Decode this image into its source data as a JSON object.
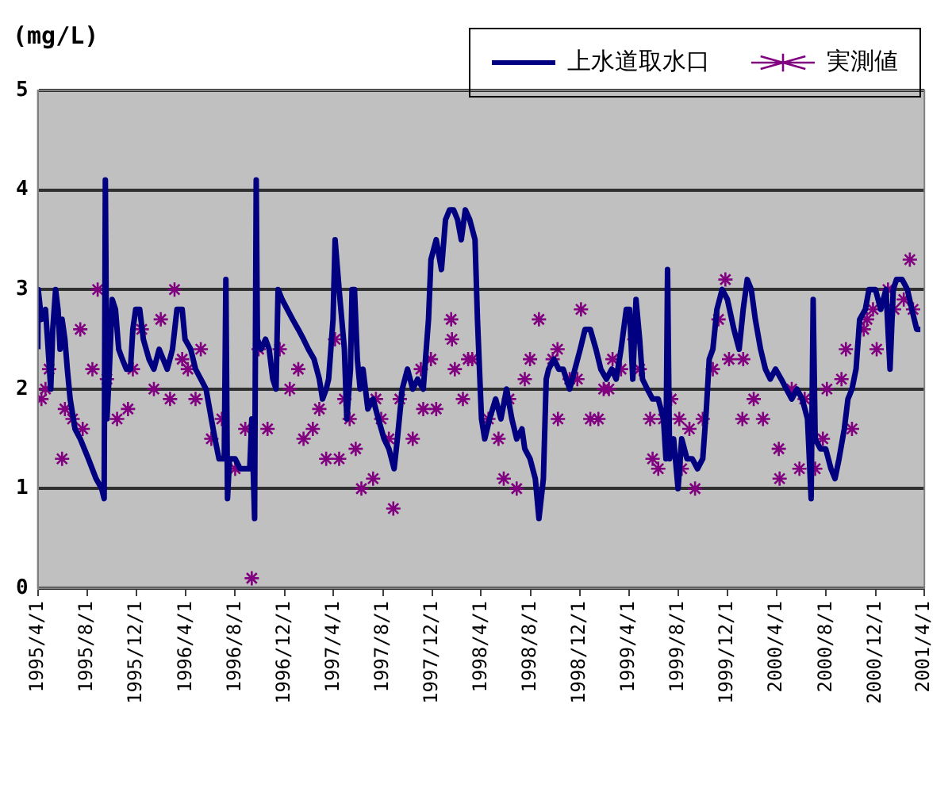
{
  "chart_data": {
    "type": "line",
    "ylabel": "(mg/L)",
    "ylim": [
      0,
      5
    ],
    "yticks": [
      0,
      1,
      2,
      3,
      4,
      5
    ],
    "grid": "y",
    "legend": "top right",
    "xlim": [
      "1995-04-01",
      "2001-04-01"
    ],
    "xticks": [
      {
        "value": "1995-04-01",
        "label": "1995/4/1"
      },
      {
        "value": "1995-08-01",
        "label": "1995/8/1"
      },
      {
        "value": "1995-12-01",
        "label": "1995/12/1"
      },
      {
        "value": "1996-04-01",
        "label": "1996/4/1"
      },
      {
        "value": "1996-08-01",
        "label": "1996/8/1"
      },
      {
        "value": "1996-12-01",
        "label": "1996/12/1"
      },
      {
        "value": "1997-04-01",
        "label": "1997/4/1"
      },
      {
        "value": "1997-08-01",
        "label": "1997/8/1"
      },
      {
        "value": "1997-12-01",
        "label": "1997/12/1"
      },
      {
        "value": "1998-04-01",
        "label": "1998/4/1"
      },
      {
        "value": "1998-08-01",
        "label": "1998/8/1"
      },
      {
        "value": "1998-12-01",
        "label": "1998/12/1"
      },
      {
        "value": "1999-04-01",
        "label": "1999/4/1"
      },
      {
        "value": "1999-08-01",
        "label": "1999/8/1"
      },
      {
        "value": "1999-12-01",
        "label": "1999/12/1"
      },
      {
        "value": "2000-04-01",
        "label": "2000/4/1"
      },
      {
        "value": "2000-08-01",
        "label": "2000/8/1"
      },
      {
        "value": "2000-12-01",
        "label": "2000/12/1"
      },
      {
        "value": "2001-04-01",
        "label": "2001/4/1"
      }
    ],
    "series": [
      {
        "name": "上水道取水口",
        "type": "line",
        "color": "#000080",
        "marker": "none",
        "line_style": "solid",
        "x": [
          "1995-04-01",
          "1995-04-02",
          "1995-04-10",
          "1995-04-20",
          "1995-04-25",
          "1995-05-03",
          "1995-05-08",
          "1995-05-15",
          "1995-05-21",
          "1995-05-26",
          "1995-05-31",
          "1995-06-07",
          "1995-06-13",
          "1995-06-20",
          "1995-07-02",
          "1995-07-15",
          "1995-08-04",
          "1995-08-23",
          "1995-09-06",
          "1995-09-12",
          "1995-09-15",
          "1995-09-19",
          "1995-09-25",
          "1995-10-02",
          "1995-10-10",
          "1995-10-18",
          "1995-10-27",
          "1995-11-06",
          "1995-11-16",
          "1995-11-22",
          "1995-11-29",
          "1995-12-09",
          "1995-12-18",
          "1996-01-01",
          "1996-01-13",
          "1996-01-26",
          "1996-02-05",
          "1996-02-15",
          "1996-02-28",
          "1996-03-10",
          "1996-03-23",
          "1996-03-30",
          "1996-04-13",
          "1996-04-25",
          "1996-05-08",
          "1996-05-21",
          "1996-06-03",
          "1996-06-12",
          "1996-06-22",
          "1996-07-05",
          "1996-07-09",
          "1996-07-13",
          "1996-07-18",
          "1996-08-01",
          "1996-08-13",
          "1996-08-26",
          "1996-09-06",
          "1996-09-11",
          "1996-09-18",
          "1996-09-22",
          "1996-09-25",
          "1996-10-04",
          "1996-10-15",
          "1996-10-24",
          "1996-11-02",
          "1996-11-10",
          "1996-11-15",
          "1996-11-25",
          "1996-12-08",
          "1996-12-21",
          "1997-01-04",
          "1997-01-17",
          "1997-01-29",
          "1997-02-12",
          "1997-02-25",
          "1997-03-05",
          "1997-03-14",
          "1997-03-20",
          "1997-03-31",
          "1997-04-05",
          "1997-04-09",
          "1997-04-15",
          "1997-04-28",
          "1997-05-04",
          "1997-05-13",
          "1997-05-17",
          "1997-05-23",
          "1997-05-30",
          "1997-06-06",
          "1997-06-13",
          "1997-06-25",
          "1997-07-08",
          "1997-07-21",
          "1997-08-04",
          "1997-08-16",
          "1997-08-29",
          "1997-09-06",
          "1997-09-18",
          "1997-10-01",
          "1997-10-14",
          "1997-10-26",
          "1997-11-09",
          "1997-11-22",
          "1997-11-28",
          "1997-12-11",
          "1997-12-24",
          "1998-01-03",
          "1998-01-13",
          "1998-01-23",
          "1998-02-02",
          "1998-02-11",
          "1998-02-21",
          "1998-03-04",
          "1998-03-17",
          "1998-03-23",
          "1998-04-02",
          "1998-04-10",
          "1998-04-22",
          "1998-05-07",
          "1998-05-20",
          "1998-06-03",
          "1998-06-16",
          "1998-06-28",
          "1998-07-11",
          "1998-07-18",
          "1998-07-31",
          "1998-08-13",
          "1998-08-22",
          "1998-09-02",
          "1998-09-09",
          "1998-09-15",
          "1998-09-28",
          "1998-10-10",
          "1998-10-21",
          "1998-11-06",
          "1998-11-19",
          "1998-12-02",
          "1998-12-14",
          "1998-12-27",
          "1999-01-10",
          "1999-01-22",
          "1999-02-05",
          "1999-02-18",
          "1999-03-01",
          "1999-03-13",
          "1999-03-26",
          "1999-04-03",
          "1999-04-11",
          "1999-04-19",
          "1999-04-28",
          "1999-05-05",
          "1999-05-17",
          "1999-05-30",
          "1999-06-13",
          "1999-06-26",
          "1999-07-02",
          "1999-07-06",
          "1999-07-11",
          "1999-07-21",
          "1999-08-01",
          "1999-08-10",
          "1999-08-23",
          "1999-09-05",
          "1999-09-18",
          "1999-10-01",
          "1999-10-10",
          "1999-10-17",
          "1999-10-26",
          "1999-11-05",
          "1999-11-18",
          "1999-12-01",
          "1999-12-17",
          "1999-12-30",
          "2000-01-09",
          "2000-01-19",
          "2000-01-29",
          "2000-02-08",
          "2000-02-21",
          "2000-03-04",
          "2000-03-16",
          "2000-03-29",
          "2000-04-12",
          "2000-04-25",
          "2000-05-08",
          "2000-05-21",
          "2000-06-03",
          "2000-06-16",
          "2000-06-25",
          "2000-06-30",
          "2000-07-05",
          "2000-07-18",
          "2000-07-31",
          "2000-08-13",
          "2000-08-23",
          "2000-09-02",
          "2000-09-15",
          "2000-09-24",
          "2000-10-04",
          "2000-10-14",
          "2000-10-23",
          "2000-11-06",
          "2000-11-15",
          "2000-12-01",
          "2000-12-14",
          "2000-12-27",
          "2001-01-06",
          "2001-01-14",
          "2001-01-22",
          "2001-02-05",
          "2001-02-18",
          "2001-03-01",
          "2001-03-13",
          "2001-03-22"
        ],
        "values": [
          2.4,
          3.0,
          2.7,
          2.8,
          2.5,
          2.0,
          2.6,
          3.0,
          2.8,
          2.4,
          2.7,
          2.5,
          2.2,
          1.9,
          1.6,
          1.5,
          1.3,
          1.1,
          1.0,
          0.9,
          4.1,
          1.7,
          2.2,
          2.9,
          2.8,
          2.4,
          2.3,
          2.2,
          2.2,
          2.6,
          2.8,
          2.8,
          2.5,
          2.3,
          2.2,
          2.4,
          2.3,
          2.2,
          2.4,
          2.8,
          2.8,
          2.5,
          2.4,
          2.2,
          2.1,
          2.0,
          1.7,
          1.5,
          1.3,
          1.3,
          3.1,
          0.9,
          1.3,
          1.3,
          1.2,
          1.2,
          1.2,
          1.7,
          0.7,
          4.1,
          2.5,
          2.4,
          2.5,
          2.4,
          2.1,
          2.0,
          3.0,
          2.9,
          2.8,
          2.7,
          2.6,
          2.5,
          2.4,
          2.3,
          2.1,
          1.9,
          2.0,
          2.1,
          2.7,
          3.5,
          3.3,
          3.0,
          2.4,
          1.7,
          2.2,
          3.0,
          3.0,
          2.3,
          2.0,
          2.2,
          1.8,
          1.9,
          1.7,
          1.5,
          1.4,
          1.2,
          1.5,
          2.0,
          2.2,
          2.0,
          2.1,
          2.0,
          2.7,
          3.3,
          3.5,
          3.2,
          3.7,
          3.8,
          3.8,
          3.7,
          3.5,
          3.8,
          3.7,
          3.5,
          2.7,
          1.7,
          1.5,
          1.7,
          1.9,
          1.7,
          2.0,
          1.7,
          1.5,
          1.6,
          1.4,
          1.3,
          1.1,
          0.7,
          1.1,
          2.1,
          2.2,
          2.3,
          2.2,
          2.2,
          2.0,
          2.2,
          2.4,
          2.6,
          2.6,
          2.4,
          2.2,
          2.1,
          2.2,
          2.1,
          2.4,
          2.8,
          2.8,
          2.1,
          2.9,
          2.5,
          2.1,
          2.0,
          1.9,
          1.9,
          1.7,
          1.3,
          3.2,
          1.3,
          1.5,
          1.0,
          1.5,
          1.3,
          1.3,
          1.2,
          1.3,
          1.8,
          2.3,
          2.4,
          2.8,
          3.0,
          2.9,
          2.6,
          2.4,
          2.8,
          3.1,
          3.0,
          2.7,
          2.4,
          2.2,
          2.1,
          2.2,
          2.1,
          2.0,
          1.9,
          2.0,
          1.9,
          1.7,
          0.9,
          2.9,
          1.5,
          1.4,
          1.4,
          1.2,
          1.1,
          1.3,
          1.6,
          1.9,
          2.0,
          2.2,
          2.7,
          2.8,
          3.0,
          3.0,
          2.8,
          3.0,
          2.2,
          3.0,
          3.1,
          3.1,
          3.0,
          2.8,
          2.6,
          2.6
        ]
      },
      {
        "name": "実測値",
        "type": "scatter",
        "color": "#800080",
        "marker": "cross",
        "x": [
          "1995-04-10",
          "1995-04-20",
          "1995-04-29",
          "1995-05-31",
          "1995-06-07",
          "1995-06-26",
          "1995-07-15",
          "1995-07-21",
          "1995-08-14",
          "1995-08-27",
          "1995-09-19",
          "1995-10-14",
          "1995-11-10",
          "1995-11-22",
          "1995-12-14",
          "1996-01-13",
          "1996-01-30",
          "1996-02-22",
          "1996-03-04",
          "1996-03-23",
          "1996-04-06",
          "1996-04-25",
          "1996-05-08",
          "1996-06-03",
          "1996-06-29",
          "1996-08-01",
          "1996-08-26",
          "1996-09-11",
          "1996-09-28",
          "1996-10-20",
          "1996-11-19",
          "1996-12-14",
          "1997-01-04",
          "1997-01-17",
          "1997-02-09",
          "1997-02-25",
          "1997-03-14",
          "1997-04-05",
          "1997-04-15",
          "1997-04-28",
          "1997-05-11",
          "1997-05-26",
          "1997-06-09",
          "1997-07-08",
          "1997-07-15",
          "1997-07-28",
          "1997-08-16",
          "1997-08-27",
          "1997-09-12",
          "1997-10-14",
          "1997-11-03",
          "1997-11-09",
          "1997-11-28",
          "1997-12-11",
          "1998-01-17",
          "1998-01-19",
          "1998-01-26",
          "1998-02-15",
          "1998-02-28",
          "1998-03-10",
          "1998-04-19",
          "1998-05-14",
          "1998-05-27",
          "1998-06-09",
          "1998-06-28",
          "1998-07-18",
          "1998-07-31",
          "1998-08-22",
          "1998-09-25",
          "1998-10-07",
          "1998-10-08",
          "1998-11-06",
          "1998-11-25",
          "1998-12-04",
          "1998-12-27",
          "1999-01-16",
          "1999-01-29",
          "1999-02-11",
          "1999-02-20",
          "1999-03-13",
          "1999-04-15",
          "1999-04-28",
          "1999-05-24",
          "1999-05-30",
          "1999-06-13",
          "1999-06-26",
          "1999-07-15",
          "1999-08-04",
          "1999-08-10",
          "1999-08-29",
          "1999-09-12",
          "1999-10-01",
          "1999-10-26",
          "1999-11-09",
          "1999-11-26",
          "1999-12-05",
          "2000-01-07",
          "2000-01-09",
          "2000-02-04",
          "2000-02-27",
          "2000-04-06",
          "2000-04-08",
          "2000-05-08",
          "2000-05-27",
          "2000-06-09",
          "2000-07-05",
          "2000-07-24",
          "2000-08-03",
          "2000-09-08",
          "2000-09-19",
          "2000-10-04",
          "2000-11-02",
          "2000-11-10",
          "2000-11-25",
          "2000-12-04",
          "2001-01-01",
          "2001-01-16",
          "2001-02-09",
          "2001-02-24",
          "2001-03-04"
        ],
        "values": [
          1.9,
          2.0,
          2.2,
          1.3,
          1.8,
          1.7,
          2.6,
          1.6,
          2.2,
          3.0,
          2.1,
          1.7,
          1.8,
          2.2,
          2.6,
          2.0,
          2.7,
          1.9,
          3.0,
          2.3,
          2.2,
          1.9,
          2.4,
          1.5,
          1.7,
          1.2,
          1.6,
          0.1,
          2.4,
          1.6,
          2.4,
          2.0,
          2.2,
          1.5,
          1.6,
          1.8,
          1.3,
          2.5,
          1.3,
          1.9,
          1.7,
          1.4,
          1.0,
          1.1,
          1.9,
          1.7,
          1.5,
          0.8,
          1.9,
          1.5,
          2.2,
          1.8,
          2.3,
          1.8,
          2.7,
          2.5,
          2.2,
          1.9,
          2.3,
          2.3,
          1.7,
          1.5,
          1.1,
          1.9,
          1.0,
          2.1,
          2.3,
          2.7,
          2.3,
          2.4,
          1.7,
          2.1,
          2.1,
          2.8,
          1.7,
          1.7,
          2.0,
          2.0,
          2.3,
          2.2,
          2.5,
          2.2,
          1.7,
          1.3,
          1.2,
          1.7,
          1.9,
          1.7,
          1.2,
          1.6,
          1.0,
          1.7,
          2.2,
          2.7,
          3.1,
          2.3,
          1.7,
          2.3,
          1.9,
          1.7,
          1.4,
          1.1,
          2.0,
          1.2,
          1.9,
          1.2,
          1.5,
          2.0,
          2.1,
          2.4,
          1.6,
          2.6,
          2.7,
          2.8,
          2.4,
          3.0,
          2.8,
          2.9,
          3.3,
          2.8
        ]
      }
    ]
  }
}
